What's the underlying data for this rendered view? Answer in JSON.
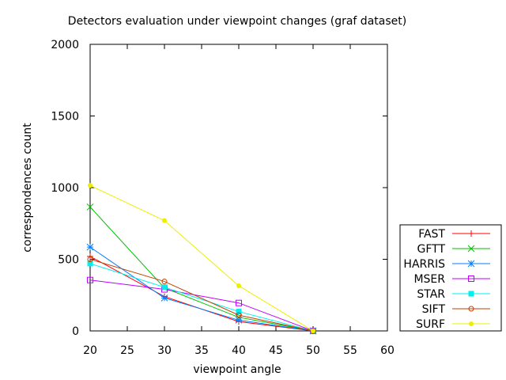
{
  "chart_data": {
    "type": "line",
    "title": "Detectors evaluation under viewpoint changes (graf dataset)",
    "xlabel": "viewpoint angle",
    "ylabel": "correspondences count",
    "xlim": [
      20,
      60
    ],
    "ylim": [
      0,
      2000
    ],
    "xticks": [
      20,
      25,
      30,
      35,
      40,
      45,
      50,
      55,
      60
    ],
    "yticks": [
      0,
      500,
      1000,
      1500,
      2000
    ],
    "grid": false,
    "legend_position": "bottom-right-outside",
    "x": [
      20,
      30,
      40,
      50
    ],
    "series": [
      {
        "name": "FAST",
        "color": "#ff0000",
        "marker": "plus",
        "values": [
          520,
          240,
          65,
          0
        ]
      },
      {
        "name": "GFTT",
        "color": "#00c000",
        "marker": "cross",
        "values": [
          865,
          300,
          95,
          0
        ]
      },
      {
        "name": "HARRIS",
        "color": "#0080ff",
        "marker": "star",
        "values": [
          585,
          230,
          75,
          0
        ]
      },
      {
        "name": "MSER",
        "color": "#c000ff",
        "marker": "open-square",
        "values": [
          355,
          290,
          195,
          0
        ]
      },
      {
        "name": "STAR",
        "color": "#00eeee",
        "marker": "filled-square",
        "values": [
          470,
          305,
          135,
          0
        ]
      },
      {
        "name": "SIFT",
        "color": "#c04000",
        "marker": "open-circle",
        "values": [
          500,
          345,
          110,
          0
        ]
      },
      {
        "name": "SURF",
        "color": "#eeee00",
        "marker": "filled-circle",
        "values": [
          1015,
          770,
          315,
          0
        ]
      }
    ]
  }
}
